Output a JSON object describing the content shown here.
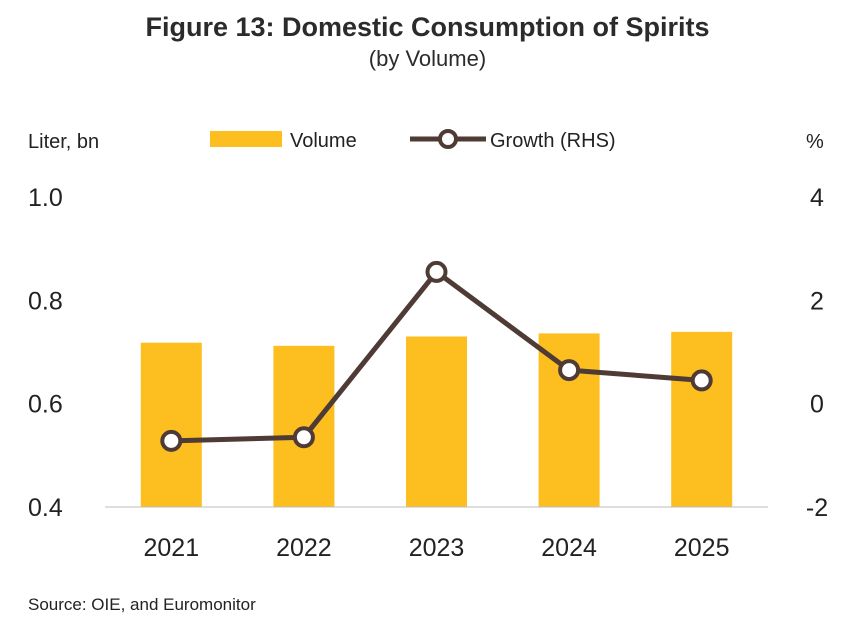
{
  "title": "Figure 13: Domestic Consumption of Spirits",
  "subtitle": "(by Volume)",
  "source": "Source: OIE, and Euromonitor",
  "colors": {
    "bar": "#FDBE1F",
    "line": "#4E3B36",
    "marker_fill": "#ffffff"
  },
  "chart_data": {
    "type": "bar",
    "categories": [
      "2021",
      "2022",
      "2023",
      "2024",
      "2025"
    ],
    "series": [
      {
        "name": "Volume",
        "type": "bar",
        "axis": "left",
        "values": [
          0.718,
          0.712,
          0.73,
          0.736,
          0.739
        ]
      },
      {
        "name": "Growth (RHS)",
        "type": "line",
        "axis": "right",
        "values": [
          -0.72,
          -0.65,
          2.55,
          0.65,
          0.45
        ]
      }
    ],
    "left_axis": {
      "label": "Liter, bn",
      "ylim": [
        0.4,
        1.0
      ],
      "ticks": [
        "0.4",
        "0.6",
        "0.8",
        "1.0"
      ]
    },
    "right_axis": {
      "label": "%",
      "ylim": [
        -2,
        4
      ],
      "ticks": [
        "-2",
        "0",
        "2",
        "4"
      ]
    },
    "legend_placement": "top-center",
    "grid": false
  }
}
